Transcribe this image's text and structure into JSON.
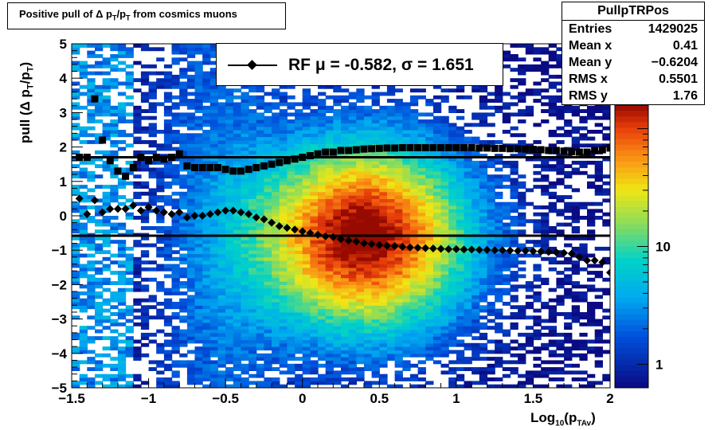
{
  "title": {
    "prefix": "Positive pull of Δ p",
    "sub1": "T",
    "mid": "/p",
    "sub2": "T",
    "suffix": " from cosmics muons"
  },
  "stats": {
    "name": "PullpTRPos",
    "rows": [
      {
        "label": "Entries",
        "value": "1429025"
      },
      {
        "label": "Mean x",
        "value": "0.41"
      },
      {
        "label": "Mean y",
        "value": "−0.6204"
      },
      {
        "label": "RMS x",
        "value": "0.5501"
      },
      {
        "label": "RMS y",
        "value": "1.76"
      }
    ]
  },
  "legend": {
    "label": "RF μ = -0.582, σ =   1.651"
  },
  "axis_labels": {
    "y": {
      "pre": "pull (Δ p",
      "s1": "T",
      "mid": "/p",
      "s2": "T",
      "post": ")"
    },
    "x": {
      "pre": "Log",
      "s1": "10",
      "mid": "(p",
      "s2": "TAv",
      "post": ")"
    }
  },
  "chart_data": {
    "type": "heatmap",
    "xlim": [
      -1.5,
      2
    ],
    "ylim": [
      -5,
      5
    ],
    "x_ticks": [
      "−1.5",
      "−1",
      "−0.5",
      "0",
      "0.5",
      "1",
      "1.5",
      "2"
    ],
    "x_tick_values": [
      -1.5,
      -1,
      -0.5,
      0,
      0.5,
      1,
      1.5,
      2
    ],
    "y_ticks": [
      "−5",
      "−4",
      "−3",
      "−2",
      "−1",
      "0",
      "1",
      "2",
      "3",
      "4",
      "5"
    ],
    "y_tick_values": [
      -5,
      -4,
      -3,
      -2,
      -1,
      0,
      1,
      2,
      3,
      4,
      5
    ],
    "color_scale": {
      "type": "log",
      "labels": [
        "1",
        "10"
      ],
      "label_values": [
        1,
        10
      ]
    },
    "heat_peak": {
      "x": 0.4,
      "y": -0.6
    },
    "horizontal_lines": [
      1.7,
      -0.58
    ],
    "series": [
      {
        "name": "RF",
        "marker": "diamond",
        "x": [
          -1.45,
          -1.4,
          -1.35,
          -1.3,
          -1.25,
          -1.2,
          -1.15,
          -1.1,
          -1.05,
          -1.0,
          -0.95,
          -0.9,
          -0.85,
          -0.8,
          -0.75,
          -0.7,
          -0.65,
          -0.6,
          -0.55,
          -0.5,
          -0.45,
          -0.4,
          -0.35,
          -0.3,
          -0.25,
          -0.2,
          -0.15,
          -0.1,
          -0.05,
          0.0,
          0.05,
          0.1,
          0.15,
          0.2,
          0.25,
          0.3,
          0.35,
          0.4,
          0.45,
          0.5,
          0.55,
          0.6,
          0.65,
          0.7,
          0.75,
          0.8,
          0.85,
          0.9,
          0.95,
          1.0,
          1.05,
          1.1,
          1.15,
          1.2,
          1.25,
          1.3,
          1.35,
          1.4,
          1.45,
          1.5,
          1.55,
          1.6,
          1.65,
          1.7,
          1.75,
          1.8,
          1.85,
          1.9,
          1.95,
          2.0
        ],
        "y": [
          0.5,
          0.05,
          0.45,
          0.1,
          0.2,
          0.2,
          0.2,
          0.3,
          0.15,
          0.25,
          0.15,
          0.1,
          0.05,
          0.1,
          -0.05,
          0.0,
          0.0,
          0.05,
          0.1,
          0.15,
          0.15,
          0.1,
          0.05,
          -0.05,
          -0.1,
          -0.2,
          -0.3,
          -0.35,
          -0.4,
          -0.45,
          -0.5,
          -0.55,
          -0.6,
          -0.62,
          -0.68,
          -0.72,
          -0.75,
          -0.8,
          -0.82,
          -0.85,
          -0.87,
          -0.88,
          -0.9,
          -0.92,
          -0.93,
          -0.94,
          -0.95,
          -0.96,
          -0.97,
          -0.97,
          -0.98,
          -0.98,
          -0.99,
          -0.99,
          -1.0,
          -1.0,
          -1.01,
          -1.02,
          -1.02,
          -1.03,
          -1.04,
          -1.05,
          -1.06,
          -1.08,
          -1.1,
          -1.2,
          -1.3,
          -1.3,
          -1.35,
          -1.65
        ]
      },
      {
        "name": "",
        "marker": "square",
        "x": [
          -1.45,
          -1.4,
          -1.35,
          -1.3,
          -1.25,
          -1.2,
          -1.15,
          -1.1,
          -1.05,
          -1.0,
          -0.95,
          -0.9,
          -0.85,
          -0.8,
          -0.75,
          -0.7,
          -0.65,
          -0.6,
          -0.55,
          -0.5,
          -0.45,
          -0.4,
          -0.35,
          -0.3,
          -0.25,
          -0.2,
          -0.15,
          -0.1,
          -0.05,
          0.0,
          0.05,
          0.1,
          0.15,
          0.2,
          0.25,
          0.3,
          0.35,
          0.4,
          0.45,
          0.5,
          0.55,
          0.6,
          0.65,
          0.7,
          0.75,
          0.8,
          0.85,
          0.9,
          0.95,
          1.0,
          1.05,
          1.1,
          1.15,
          1.2,
          1.25,
          1.3,
          1.35,
          1.4,
          1.45,
          1.5,
          1.55,
          1.6,
          1.65,
          1.7,
          1.75,
          1.8,
          1.85,
          1.9,
          1.95,
          2.0
        ],
        "y": [
          1.7,
          1.7,
          3.4,
          2.2,
          1.6,
          1.3,
          1.15,
          1.4,
          1.7,
          1.6,
          1.7,
          1.65,
          1.7,
          1.8,
          1.45,
          1.4,
          1.4,
          1.4,
          1.4,
          1.35,
          1.3,
          1.3,
          1.35,
          1.4,
          1.45,
          1.5,
          1.55,
          1.6,
          1.65,
          1.7,
          1.75,
          1.8,
          1.85,
          1.85,
          1.9,
          1.9,
          1.92,
          1.94,
          1.95,
          1.96,
          1.97,
          1.97,
          1.98,
          1.98,
          1.98,
          1.98,
          1.98,
          1.98,
          1.98,
          1.98,
          1.98,
          1.98,
          1.97,
          1.97,
          1.96,
          1.96,
          1.95,
          1.95,
          1.94,
          1.93,
          1.92,
          1.9,
          1.9,
          1.88,
          1.86,
          1.85,
          1.85,
          1.9,
          1.92,
          1.97
        ]
      }
    ]
  }
}
